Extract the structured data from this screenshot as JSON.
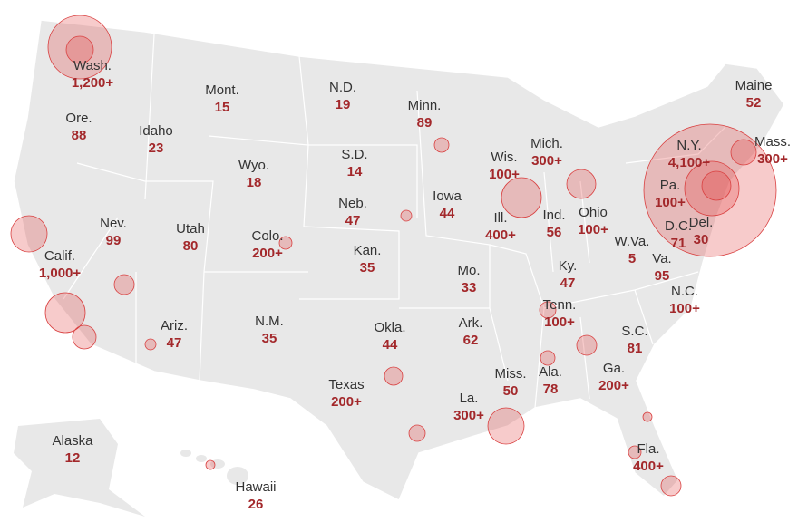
{
  "states": [
    {
      "name": "Wash.",
      "cases": "1,200+"
    },
    {
      "name": "Mont.",
      "cases": 15
    },
    {
      "name": "N.D.",
      "cases": 19
    },
    {
      "name": "Minn.",
      "cases": 89
    },
    {
      "name": "Maine",
      "cases": 52
    },
    {
      "name": "Ore.",
      "cases": 88
    },
    {
      "name": "Idaho",
      "cases": 23
    },
    {
      "name": "S.D.",
      "cases": 14
    },
    {
      "name": "Mich.",
      "cases": "300+"
    },
    {
      "name": "N.Y.",
      "cases": "4,100+"
    },
    {
      "name": "Mass.",
      "cases": "300+"
    },
    {
      "name": "Wyo.",
      "cases": 18
    },
    {
      "name": "Wis.",
      "cases": "100+"
    },
    {
      "name": "Neb.",
      "cases": 47
    },
    {
      "name": "Iowa",
      "cases": 44
    },
    {
      "name": "Pa.",
      "cases": "100+"
    },
    {
      "name": "Ill.",
      "cases": "400+"
    },
    {
      "name": "Ind.",
      "cases": 56
    },
    {
      "name": "Ohio",
      "cases": "100+"
    },
    {
      "name": "D.C.",
      "cases": 71
    },
    {
      "name": "Del.",
      "cases": 30
    },
    {
      "name": "Nev.",
      "cases": 99
    },
    {
      "name": "Utah",
      "cases": 80
    },
    {
      "name": "Colo.",
      "cases": "200+"
    },
    {
      "name": "Kan.",
      "cases": 35
    },
    {
      "name": "W.Va.",
      "cases": 5
    },
    {
      "name": "Calif.",
      "cases": "1,000+"
    },
    {
      "name": "Va.",
      "cases": 95
    },
    {
      "name": "Ky.",
      "cases": 47
    },
    {
      "name": "Mo.",
      "cases": 33
    },
    {
      "name": "N.C.",
      "cases": "100+"
    },
    {
      "name": "Tenn.",
      "cases": "100+"
    },
    {
      "name": "Ark.",
      "cases": 62
    },
    {
      "name": "Ariz.",
      "cases": 47
    },
    {
      "name": "N.M.",
      "cases": 35
    },
    {
      "name": "Okla.",
      "cases": 44
    },
    {
      "name": "S.C.",
      "cases": 81
    },
    {
      "name": "Texas",
      "cases": "200+"
    },
    {
      "name": "Miss.",
      "cases": 50
    },
    {
      "name": "Ala.",
      "cases": 78
    },
    {
      "name": "Ga.",
      "cases": "200+"
    },
    {
      "name": "La.",
      "cases": "300+"
    },
    {
      "name": "Fla.",
      "cases": "400+"
    },
    {
      "name": "Alaska",
      "cases": 12
    },
    {
      "name": "Hawaii",
      "cases": 26
    }
  ]
}
